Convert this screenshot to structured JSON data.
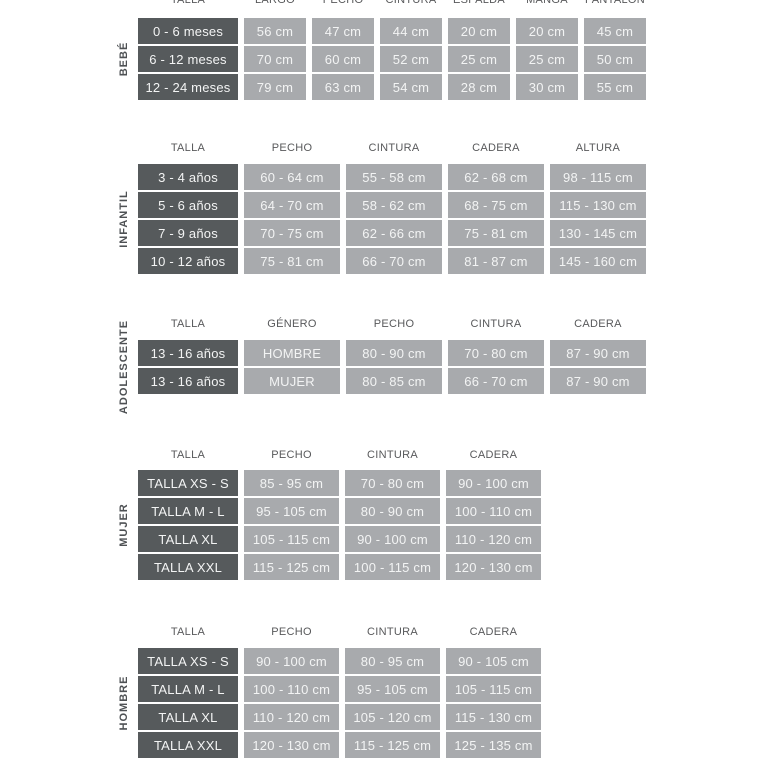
{
  "page": {
    "background": "#ffffff"
  },
  "colors": {
    "talla_cell_bg": "#565a5c",
    "value_cell_bg": "#a8aaad",
    "cell_text": "#f3f4f4",
    "header_text": "#58595b",
    "side_label_text": "#4e5154"
  },
  "tables": [
    {
      "side_label": "BEBÉ",
      "columns": [
        "TALLA",
        "LARGO",
        "PECHO",
        "CINTURA",
        "ESPALDA",
        "MANGA",
        "PANTALÓN"
      ],
      "rows": [
        {
          "talla": "0 - 6 meses",
          "values": [
            "56 cm",
            "47 cm",
            "44 cm",
            "20 cm",
            "20 cm",
            "45 cm"
          ]
        },
        {
          "talla": "6 - 12 meses",
          "values": [
            "70 cm",
            "60 cm",
            "52 cm",
            "25 cm",
            "25 cm",
            "50 cm"
          ]
        },
        {
          "talla": "12 - 24 meses",
          "values": [
            "79 cm",
            "63 cm",
            "54 cm",
            "28 cm",
            "30 cm",
            "55 cm"
          ]
        }
      ]
    },
    {
      "side_label": "INFANTIL",
      "columns": [
        "TALLA",
        "PECHO",
        "CINTURA",
        "CADERA",
        "ALTURA"
      ],
      "rows": [
        {
          "talla": "3 - 4 años",
          "values": [
            "60 - 64 cm",
            "55 - 58 cm",
            "62 - 68 cm",
            "98 - 115 cm"
          ]
        },
        {
          "talla": "5 - 6 años",
          "values": [
            "64 - 70 cm",
            "58 - 62 cm",
            "68 - 75 cm",
            "115 - 130 cm"
          ]
        },
        {
          "talla": "7 - 9 años",
          "values": [
            "70 - 75 cm",
            "62 - 66 cm",
            "75 - 81 cm",
            "130 - 145 cm"
          ]
        },
        {
          "talla": "10 - 12 años",
          "values": [
            "75 - 81 cm",
            "66 - 70 cm",
            "81 - 87 cm",
            "145 - 160 cm"
          ]
        }
      ]
    },
    {
      "side_label": "ADOLESCENTE",
      "columns": [
        "TALLA",
        "GÉNERO",
        "PECHO",
        "CINTURA",
        "CADERA"
      ],
      "rows": [
        {
          "talla": "13 - 16 años",
          "values": [
            "HOMBRE",
            "80 - 90 cm",
            "70 - 80 cm",
            "87 - 90 cm"
          ]
        },
        {
          "talla": "13 - 16 años",
          "values": [
            "MUJER",
            "80 - 85 cm",
            "66 - 70 cm",
            "87 - 90 cm"
          ]
        }
      ]
    },
    {
      "side_label": "MUJER",
      "columns": [
        "TALLA",
        "PECHO",
        "CINTURA",
        "CADERA"
      ],
      "rows": [
        {
          "talla": "TALLA XS - S",
          "values": [
            "85 - 95 cm",
            "70 - 80 cm",
            "90 - 100 cm"
          ]
        },
        {
          "talla": "TALLA M - L",
          "values": [
            "95 - 105 cm",
            "80 - 90 cm",
            "100 - 110 cm"
          ]
        },
        {
          "talla": "TALLA XL",
          "values": [
            "105 - 115 cm",
            "90 - 100 cm",
            "110 - 120 cm"
          ]
        },
        {
          "talla": "TALLA XXL",
          "values": [
            "115 - 125 cm",
            "100 - 115 cm",
            "120 - 130 cm"
          ]
        }
      ]
    },
    {
      "side_label": "HOMBRE",
      "columns": [
        "TALLA",
        "PECHO",
        "CINTURA",
        "CADERA"
      ],
      "rows": [
        {
          "talla": "TALLA XS - S",
          "values": [
            "90 - 100 cm",
            "80 - 95 cm",
            "90 - 105 cm"
          ]
        },
        {
          "talla": "TALLA M - L",
          "values": [
            "100 - 110 cm",
            "95 - 105 cm",
            "105 - 115 cm"
          ]
        },
        {
          "talla": "TALLA XL",
          "values": [
            "110 - 120 cm",
            "105 - 120 cm",
            "115 - 130 cm"
          ]
        },
        {
          "talla": "TALLA XXL",
          "values": [
            "120 - 130 cm",
            "115 - 125 cm",
            "125 - 135 cm"
          ]
        }
      ]
    }
  ]
}
